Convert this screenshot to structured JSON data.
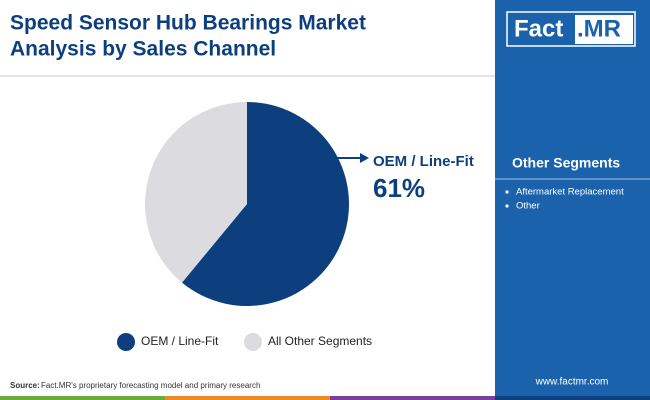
{
  "title_lines": [
    "Speed Sensor Hub Bearings Market",
    "Analysis by Sales Channel"
  ],
  "chart_data": {
    "type": "pie",
    "categories": [
      "OEM / Line-Fit",
      "All Other Segments"
    ],
    "values": [
      61,
      39
    ],
    "value_labels": [
      "61%",
      null
    ],
    "colors": [
      "#0d3f7f",
      "#dcdce0"
    ],
    "legend": "bottom"
  },
  "logo": {
    "left": "Fact",
    "right": ".MR"
  },
  "panel": {
    "title": "Other Segments",
    "items": [
      "Aftermarket Replacement",
      "Other"
    ]
  },
  "source": {
    "label": "Source:",
    "text": "Fact.MR's proprietary forecasting model and primary research"
  },
  "website": "www.factmr.com"
}
